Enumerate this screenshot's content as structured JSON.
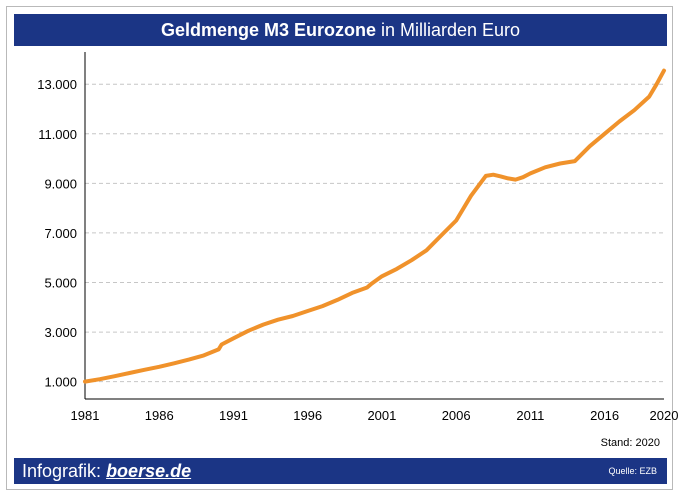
{
  "header": {
    "title_bold": "Geldmenge M3 Eurozone",
    "title_rest": "in Milliarden Euro"
  },
  "footer": {
    "prefix": "Infografik:",
    "brand": "boerse.de",
    "source": "Quelle: EZB"
  },
  "stand": "Stand: 2020",
  "colors": {
    "banner": "#1b3585",
    "line": "#f0922b",
    "grid": "#c6c6c6"
  },
  "chart_data": {
    "type": "line",
    "title": "Geldmenge M3 Eurozone in Milliarden Euro",
    "xlabel": "",
    "ylabel": "",
    "xlim": [
      1981,
      2020
    ],
    "ylim": [
      300,
      14300
    ],
    "x_ticks": [
      1981,
      1986,
      1991,
      1996,
      2001,
      2006,
      2011,
      2016,
      2020
    ],
    "y_ticks": [
      1000,
      3000,
      5000,
      7000,
      9000,
      11000,
      13000
    ],
    "y_tick_labels": [
      "1.000",
      "3.000",
      "5.000",
      "7.000",
      "9.000",
      "11.000",
      "13.000"
    ],
    "grid": true,
    "series": [
      {
        "name": "M3",
        "x": [
          1981,
          1982,
          1983,
          1984,
          1985,
          1986,
          1987,
          1988,
          1989,
          1990,
          1990.2,
          1991,
          1992,
          1993,
          1994,
          1995,
          1996,
          1997,
          1998,
          1999,
          2000,
          2000.3,
          2001,
          2002,
          2003,
          2004,
          2005,
          2006,
          2007,
          2008,
          2008.5,
          2009,
          2009.5,
          2010,
          2010.5,
          2011,
          2012,
          2013,
          2014,
          2015,
          2016,
          2017,
          2018,
          2019,
          2019.5,
          2020
        ],
        "values": [
          1000,
          1100,
          1220,
          1350,
          1480,
          1600,
          1740,
          1890,
          2060,
          2300,
          2500,
          2750,
          3050,
          3300,
          3500,
          3650,
          3850,
          4050,
          4300,
          4580,
          4800,
          4950,
          5250,
          5550,
          5900,
          6300,
          6900,
          7500,
          8500,
          9300,
          9350,
          9280,
          9200,
          9150,
          9250,
          9400,
          9650,
          9800,
          9900,
          10500,
          11000,
          11500,
          11950,
          12500,
          13000,
          13550
        ]
      }
    ]
  }
}
